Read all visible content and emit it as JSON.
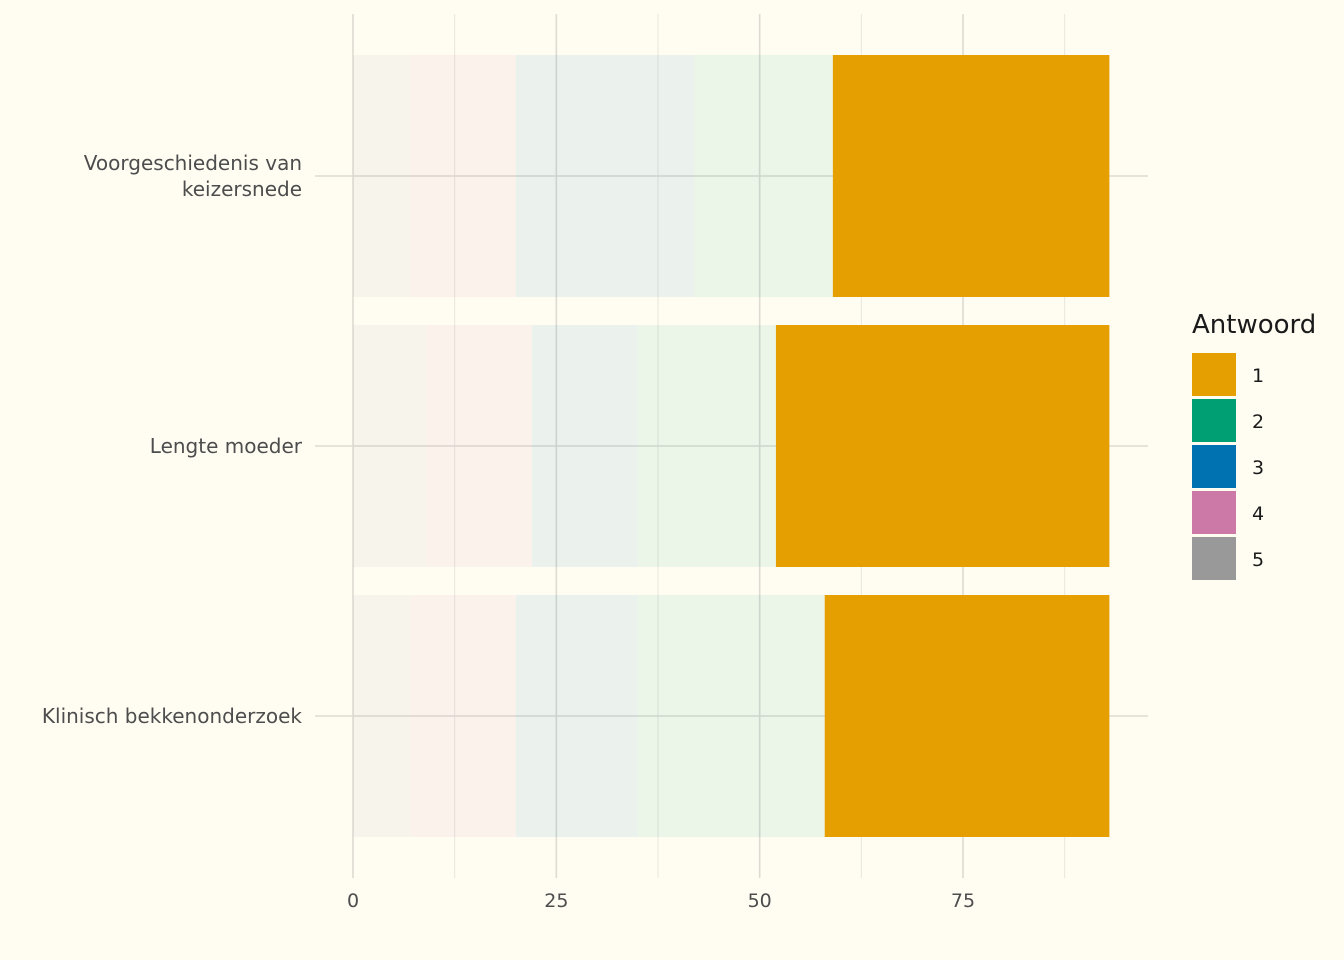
{
  "chart_data": {
    "type": "bar",
    "orientation": "horizontal",
    "stacked": true,
    "categories": [
      [
        "Voorgeschiedenis van",
        "keizersnede"
      ],
      [
        "Lengte moeder"
      ],
      [
        "Klinisch bekkenonderzoek"
      ]
    ],
    "series": [
      {
        "name": "1",
        "color": "#E69F00",
        "values": [
          34,
          41,
          35
        ],
        "opacity": 1.0
      },
      {
        "name": "2",
        "color": "#009E73",
        "values": [
          17,
          17,
          23
        ],
        "opacity": 0.08
      },
      {
        "name": "3",
        "color": "#0072B2",
        "values": [
          22,
          13,
          15
        ],
        "opacity": 0.08
      },
      {
        "name": "4",
        "color": "#CC79A7",
        "values": [
          13,
          13,
          13
        ],
        "opacity": 0.08
      },
      {
        "name": "5",
        "color": "#999999",
        "values": [
          7,
          9,
          7
        ],
        "opacity": 0.08
      }
    ],
    "stack_order_from_zero": [
      "5",
      "4",
      "3",
      "2",
      "1"
    ],
    "xlim": [
      0,
      93
    ],
    "x_ticks": [
      0,
      25,
      50,
      75
    ],
    "grid": true,
    "legend": {
      "title": "Antwoord",
      "placement": "right",
      "items": [
        "1",
        "2",
        "3",
        "4",
        "5"
      ]
    },
    "title": "",
    "xlabel": "",
    "ylabel": ""
  }
}
